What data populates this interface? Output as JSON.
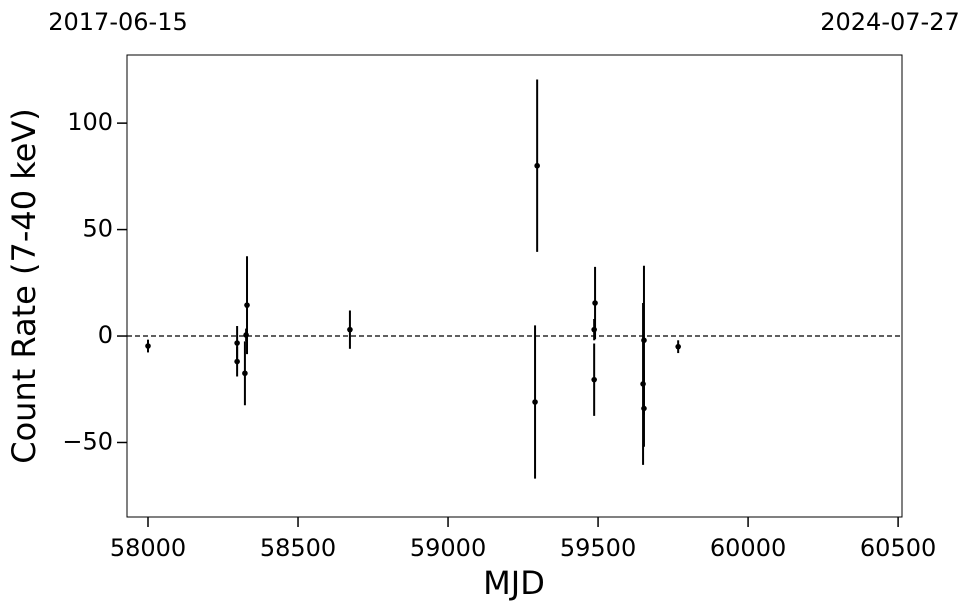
{
  "chart_data": {
    "type": "errorbar",
    "xlabel": "MJD",
    "ylabel": "Count Rate (7-40 keV)",
    "top_axis_labels": [
      "2017-06-15",
      "2024-07-27"
    ],
    "x": [
      58000,
      58297,
      58297,
      58323,
      58327,
      58330,
      58673,
      59290,
      59297,
      59487,
      59487,
      59490,
      59650,
      59653,
      59653,
      59767
    ],
    "values": [
      -4.7,
      -3.3,
      -12,
      -17.5,
      0.5,
      14.5,
      3,
      -31,
      80,
      -20.5,
      3,
      15.5,
      -22.5,
      -2,
      -34,
      -5
    ],
    "errors": [
      3,
      8,
      7,
      15,
      3,
      23,
      9,
      36,
      40.5,
      17,
      5,
      17,
      38,
      35,
      18,
      3
    ],
    "color": "#000000",
    "hline": 0,
    "xlim": [
      57930,
      60513
    ],
    "ylim": [
      -85,
      132
    ],
    "xticks": [
      58000,
      58500,
      59000,
      59500,
      60000,
      60500
    ],
    "yticks": [
      {
        "value": -50,
        "label": "−50"
      },
      0,
      50,
      100
    ]
  }
}
